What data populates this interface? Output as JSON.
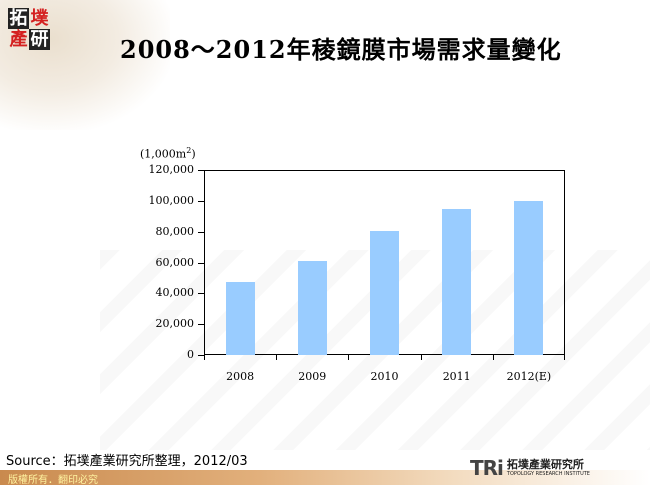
{
  "logo": {
    "chars": [
      "拓",
      "墣",
      "產",
      "研"
    ]
  },
  "header": {
    "title": "2008～2012年稜鏡膜市場需求量變化"
  },
  "chart_data": {
    "type": "bar",
    "title": "2008～2012年稜鏡膜市場需求量變化",
    "unit_label": "(1,000m²)",
    "xlabel": "",
    "ylabel": "(1,000m²)",
    "categories": [
      "2008",
      "2009",
      "2010",
      "2011",
      "2012(E)"
    ],
    "values": [
      47500,
      61000,
      80500,
      95000,
      100000
    ],
    "ylim": [
      0,
      120000
    ],
    "yticks": [
      "120,000",
      "100,000",
      "80,000",
      "60,000",
      "40,000",
      "20,000",
      "0"
    ],
    "bar_color": "#99ccff",
    "grid": false,
    "legend": null
  },
  "footer": {
    "source": "Source：拓墣產業研究所整理，2012/03",
    "copyright": "版權所有．翻印必究",
    "tri_mark": "TRi",
    "tri_cn": "拓墣產業研究所",
    "tri_en": "TOPOLOGY RESEARCH INSTITUTE"
  }
}
